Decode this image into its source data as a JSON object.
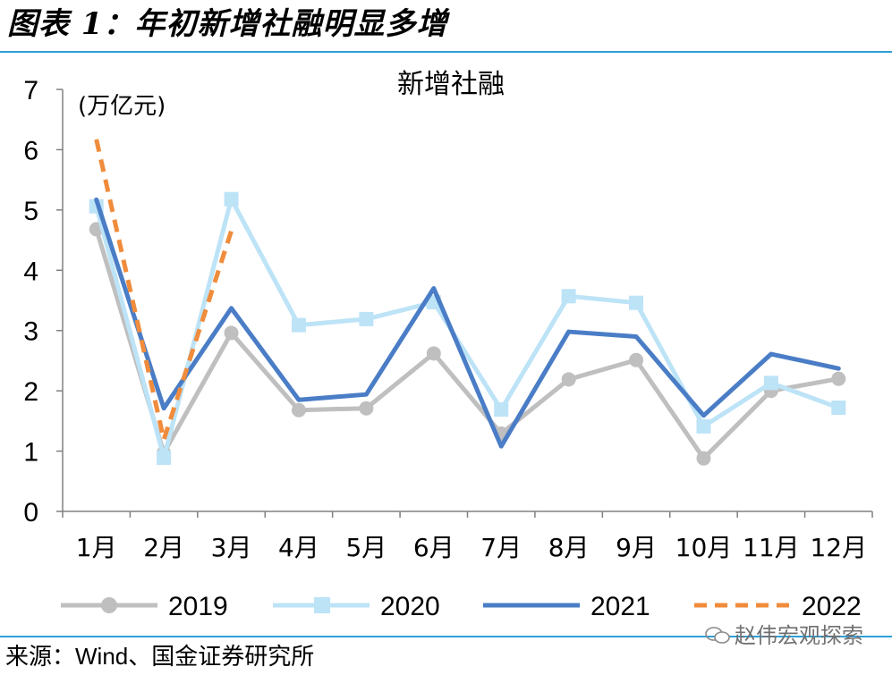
{
  "figure": {
    "heading": "图表 1：年初新增社融明显多增",
    "source": "来源：Wind、国金证券研究所",
    "watermark": "赵伟宏观探索"
  },
  "colors": {
    "s2019": "#bfbfbf",
    "s2020": "#bde3f7",
    "s2021": "#4a7dc6",
    "s2022": "#f08c3c",
    "rule": "#2e9fd6"
  },
  "chart_data": {
    "type": "line",
    "title": "新增社融",
    "unit_label": "(万亿元)",
    "xlabel": "",
    "ylabel": "",
    "categories": [
      "1月",
      "2月",
      "3月",
      "4月",
      "5月",
      "6月",
      "7月",
      "8月",
      "9月",
      "10月",
      "11月",
      "12月"
    ],
    "ylim": [
      0,
      7
    ],
    "yticks": [
      0,
      1,
      2,
      3,
      4,
      5,
      6,
      7
    ],
    "grid": false,
    "legend": "bottom",
    "series": [
      {
        "name": "2019",
        "values": [
          4.68,
          0.97,
          2.96,
          1.68,
          1.71,
          2.62,
          1.29,
          2.19,
          2.51,
          0.88,
          2.0,
          2.2
        ],
        "marker": "circle",
        "dash": false,
        "color_key": "s2019"
      },
      {
        "name": "2020",
        "values": [
          5.06,
          0.89,
          5.18,
          3.09,
          3.19,
          3.47,
          1.69,
          3.57,
          3.46,
          1.41,
          2.13,
          1.72
        ],
        "marker": "square",
        "dash": false,
        "color_key": "s2020"
      },
      {
        "name": "2021",
        "values": [
          5.17,
          1.71,
          3.37,
          1.85,
          1.94,
          3.7,
          1.08,
          2.98,
          2.9,
          1.59,
          2.61,
          2.37
        ],
        "marker": "none",
        "dash": false,
        "color_key": "s2021"
      },
      {
        "name": "2022",
        "values": [
          6.17,
          1.19,
          4.65,
          null,
          null,
          null,
          null,
          null,
          null,
          null,
          null,
          null
        ],
        "marker": "none",
        "dash": true,
        "color_key": "s2022"
      }
    ]
  }
}
